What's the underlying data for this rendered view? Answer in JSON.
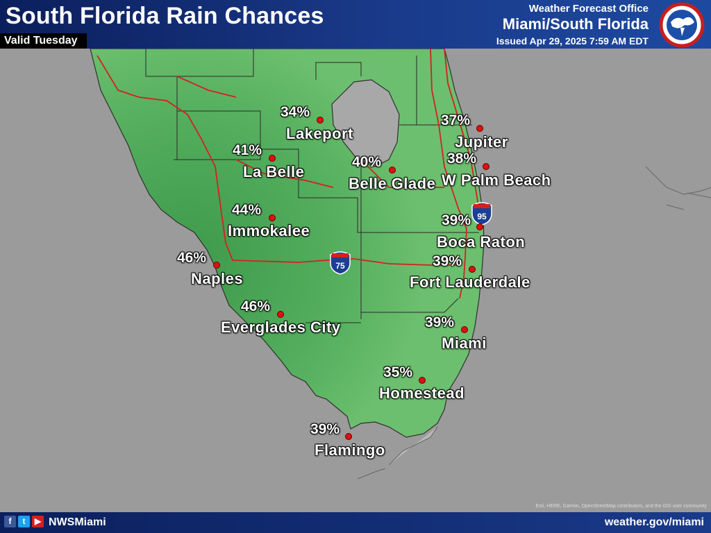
{
  "header": {
    "title": "South Florida Rain Chances",
    "subtitle": "Valid Tuesday",
    "office_line1": "Weather Forecast Office",
    "office_line2": "Miami/South Florida",
    "issued": "Issued Apr 29, 2025 7:59 AM EDT",
    "logo_name": "noaa-nws-logo"
  },
  "locations": [
    {
      "name": "Lakeport",
      "percent": "34%"
    },
    {
      "name": "Jupiter",
      "percent": "37%"
    },
    {
      "name": "La Belle",
      "percent": "41%"
    },
    {
      "name": "Belle Glade",
      "percent": "40%"
    },
    {
      "name": "W Palm Beach",
      "percent": "38%"
    },
    {
      "name": "Immokalee",
      "percent": "44%"
    },
    {
      "name": "Boca Raton",
      "percent": "39%"
    },
    {
      "name": "Naples",
      "percent": "46%"
    },
    {
      "name": "Fort Lauderdale",
      "percent": "39%"
    },
    {
      "name": "Everglades City",
      "percent": "46%"
    },
    {
      "name": "Miami",
      "percent": "39%"
    },
    {
      "name": "Homestead",
      "percent": "35%"
    },
    {
      "name": "Flamingo",
      "percent": "39%"
    }
  ],
  "highways": [
    {
      "label": "75",
      "icon": "interstate-shield-icon"
    },
    {
      "label": "95",
      "icon": "interstate-shield-icon"
    }
  ],
  "footer": {
    "handle": "NWSMiami",
    "website": "weather.gov/miami",
    "attribution": "Esri, HERE, Garmin, OpenStreetMap contributors, and the GIS user community",
    "social_icons": [
      "facebook-icon",
      "twitter-icon",
      "youtube-icon"
    ]
  },
  "colors": {
    "header_bg": "#0b1f5c",
    "land_low": "#6cbf6e",
    "land_high": "#3e9a4c",
    "water": "#9b9b9b",
    "lake": "#a8a8a8",
    "road": "#d42020",
    "marker": "#e01010"
  }
}
